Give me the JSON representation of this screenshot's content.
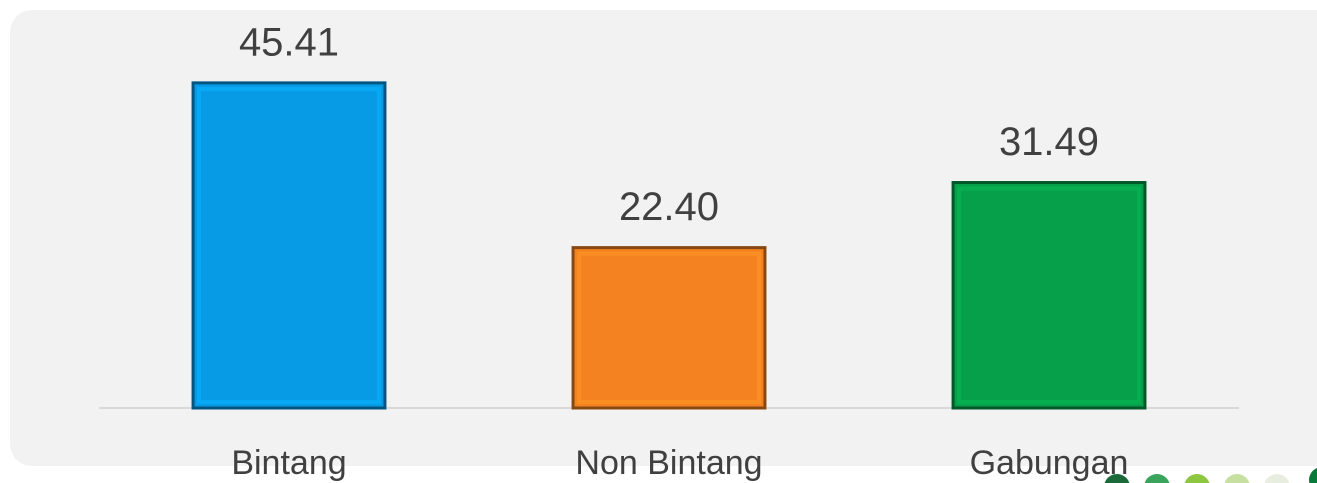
{
  "chart_data": {
    "type": "bar",
    "categories": [
      "Bintang",
      "Non Bintang",
      "Gabungan"
    ],
    "values": [
      45.41,
      22.4,
      31.49
    ],
    "value_labels": [
      "45.41",
      "22.40",
      "31.49"
    ],
    "colors": [
      "#079be6",
      "#f58220",
      "#06a04a"
    ],
    "ylim": [
      0,
      50
    ]
  }
}
